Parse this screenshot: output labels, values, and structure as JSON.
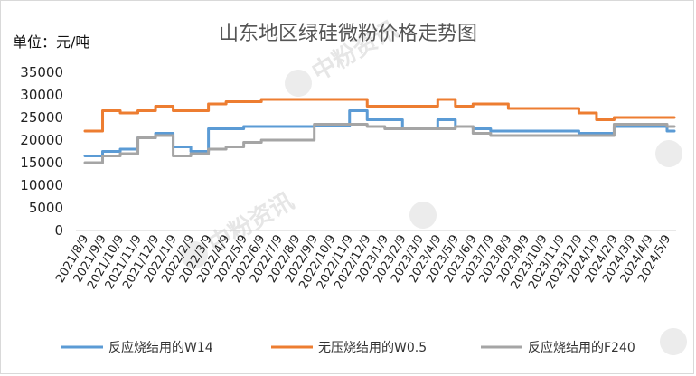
{
  "chart_data": {
    "type": "line",
    "title": "山东地区绿硅微粉价格走势图",
    "unit_label": "单位：元/吨",
    "watermark": "中粉资讯",
    "ylim": [
      0,
      35000
    ],
    "yticks": [
      0,
      5000,
      10000,
      15000,
      20000,
      25000,
      30000,
      35000
    ],
    "grid": false,
    "legend_position": "bottom",
    "categories": [
      "2021/8/9",
      "2021/9/9",
      "2021/10/9",
      "2021/11/9",
      "2021/12/9",
      "2022/1/9",
      "2022/2/9",
      "2022/3/9",
      "2022/4/9",
      "2022/5/9",
      "2022/6/9",
      "2022/7/9",
      "2022/8/9",
      "2022/9/9",
      "2022/10/9",
      "2022/11/9",
      "2022/12/9",
      "2023/1/9",
      "2023/2/9",
      "2023/3/9",
      "2023/4/9",
      "2023/5/9",
      "2023/6/9",
      "2023/7/9",
      "2023/8/9",
      "2023/9/9",
      "2023/10/9",
      "2023/11/9",
      "2023/12/9",
      "2024/1/9",
      "2024/2/9",
      "2024/3/9",
      "2024/4/9",
      "2024/5/9"
    ],
    "series": [
      {
        "name": "反应烧结用的W14",
        "color": "#5b9bd5",
        "values": [
          16500,
          17500,
          18000,
          20500,
          21500,
          18500,
          17500,
          22500,
          22500,
          23000,
          23000,
          23000,
          23000,
          23200,
          23200,
          26500,
          24500,
          24500,
          22500,
          22500,
          24500,
          23000,
          22500,
          22000,
          22000,
          22000,
          22000,
          22000,
          21500,
          21500,
          23000,
          23000,
          23000,
          22000
        ]
      },
      {
        "name": "无压烧结用的W0.5",
        "color": "#ed7d31",
        "values": [
          22000,
          26500,
          26000,
          26500,
          27500,
          26500,
          26500,
          28000,
          28500,
          28500,
          29000,
          29000,
          29000,
          29000,
          29000,
          29000,
          27500,
          27500,
          27500,
          27500,
          29000,
          27500,
          28000,
          28000,
          27000,
          27000,
          27000,
          27000,
          26000,
          24500,
          25000,
          25000,
          25000,
          25000
        ]
      },
      {
        "name": "反应烧结用的F240",
        "color": "#a5a5a5",
        "values": [
          15000,
          16500,
          17000,
          20500,
          21000,
          16500,
          17000,
          18000,
          18500,
          19500,
          20000,
          20000,
          20000,
          23500,
          23500,
          23500,
          23000,
          22500,
          22500,
          22500,
          22500,
          23000,
          21500,
          21000,
          21000,
          21000,
          21000,
          21000,
          21000,
          21000,
          23500,
          23500,
          23500,
          23000
        ]
      }
    ]
  }
}
